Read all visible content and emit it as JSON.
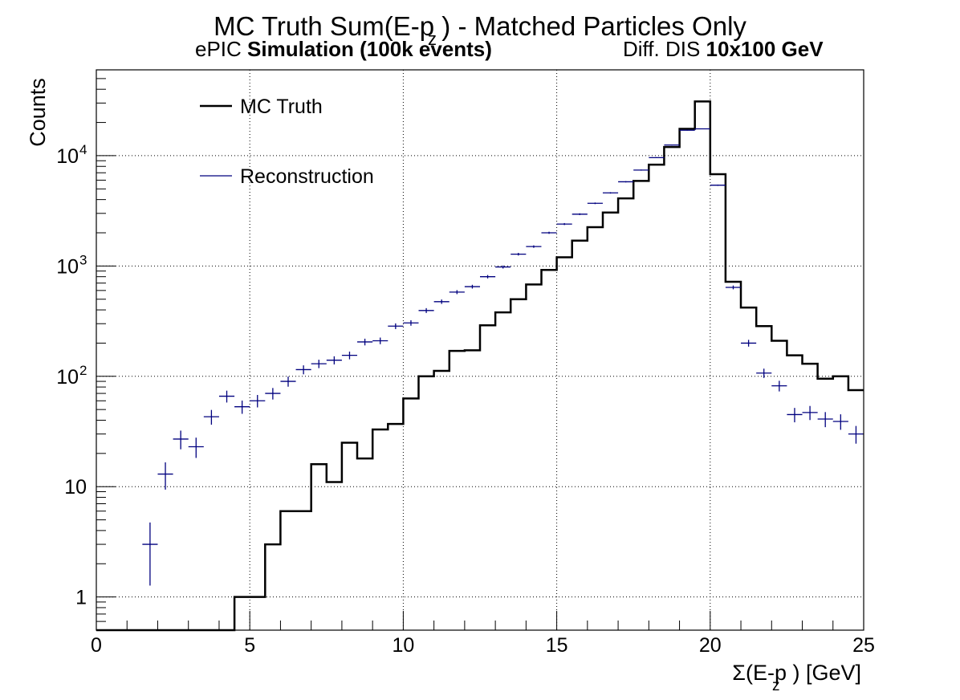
{
  "title": "MC Truth Sum(E-p ) - Matched Particles Only",
  "title_subscript": "z",
  "subtitle": {
    "left_normal": "ePIC ",
    "left_bold": "Simulation (100k events)",
    "right_normal": "Diff. DIS ",
    "right_bold": "10x100 GeV"
  },
  "colors": {
    "mc_truth": "#000000",
    "reconstruction": "#00007f",
    "grid": "#000000"
  },
  "chart_data": {
    "type": "line",
    "title": "MC Truth Sum(E-p ) - Matched Particles Only",
    "xlabel": "Σ(E-p ) [GeV]",
    "xlabel_subscript": "z",
    "ylabel": "Counts",
    "xlim": [
      0,
      25
    ],
    "ylim": [
      0.5,
      60000
    ],
    "y_scale": "log",
    "grid": true,
    "legend_position": "top-left",
    "x_ticks": [
      0,
      5,
      10,
      15,
      20,
      25
    ],
    "x_tick_labels": [
      "0",
      "5",
      "10",
      "15",
      "20",
      "25"
    ],
    "y_ticks": [
      1,
      10,
      100,
      1000,
      10000
    ],
    "y_tick_labels": [
      {
        "base": "1",
        "exp": ""
      },
      {
        "base": "10",
        "exp": ""
      },
      {
        "base": "10",
        "exp": "2"
      },
      {
        "base": "10",
        "exp": "3"
      },
      {
        "base": "10",
        "exp": "4"
      }
    ],
    "bin_width": 0.5,
    "series": [
      {
        "name": "MC Truth",
        "style": "step",
        "bin_edges_start": 0,
        "values": [
          0,
          0,
          0,
          0,
          0,
          0,
          0,
          0,
          0,
          1,
          1,
          3,
          6,
          6,
          16,
          11,
          25,
          18,
          33,
          37,
          63,
          100,
          112,
          170,
          172,
          290,
          380,
          500,
          680,
          920,
          1200,
          1700,
          2250,
          3050,
          4100,
          5900,
          8300,
          12000,
          17500,
          31000,
          6800,
          720,
          420,
          285,
          210,
          155,
          130,
          95,
          100,
          75
        ]
      },
      {
        "name": "Reconstruction",
        "style": "errorbar",
        "x": [
          1.75,
          2.25,
          2.75,
          3.25,
          3.75,
          4.25,
          4.75,
          5.25,
          5.75,
          6.25,
          6.75,
          7.25,
          7.75,
          8.25,
          8.75,
          9.25,
          9.75,
          10.25,
          10.75,
          11.25,
          11.75,
          12.25,
          12.75,
          13.25,
          13.75,
          14.25,
          14.75,
          15.25,
          15.75,
          16.25,
          16.75,
          17.25,
          17.75,
          18.25,
          18.75,
          19.25,
          19.75,
          20.25,
          20.75,
          21.25,
          21.75,
          22.25,
          22.75,
          23.25,
          23.75,
          24.25,
          24.75
        ],
        "values": [
          3,
          13,
          27,
          23,
          43,
          66,
          53,
          60,
          70,
          90,
          115,
          130,
          140,
          155,
          205,
          210,
          285,
          305,
          395,
          475,
          580,
          650,
          800,
          980,
          1280,
          1500,
          2000,
          2400,
          2950,
          3700,
          4600,
          5800,
          7400,
          9600,
          12500,
          17000,
          17500,
          5400,
          640,
          200,
          107,
          82,
          45,
          47,
          41,
          39,
          30
        ]
      }
    ]
  }
}
